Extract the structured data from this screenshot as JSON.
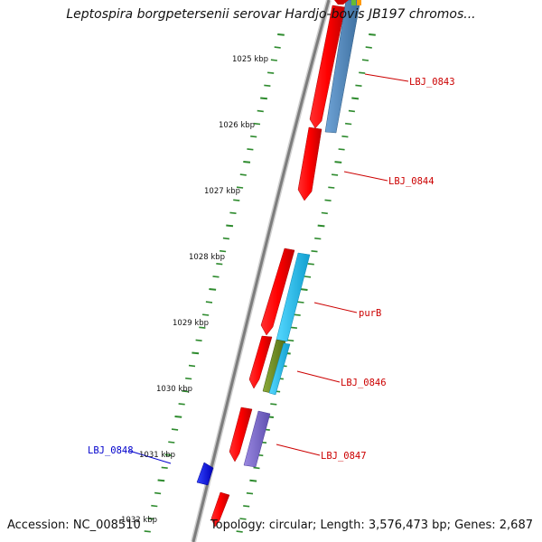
{
  "map": {
    "title": "Leptospira borgpetersenii serovar Hardjo-bovis JB197 chromos...",
    "accession": "Accession: NC_008510",
    "summary": "Topology: circular; Length: 3,576,473 bp; Genes: 2,687"
  },
  "ticks": [
    {
      "label": "1025 kbp"
    },
    {
      "label": "1026 kbp"
    },
    {
      "label": "1027 kbp"
    },
    {
      "label": "1028 kbp"
    },
    {
      "label": "1029 kbp"
    },
    {
      "label": "1030 kbp"
    },
    {
      "label": "1031 kbp"
    },
    {
      "label": "1032 kbp"
    }
  ],
  "gene_labels": [
    {
      "label": "LBJ_0843",
      "color": "#cc0000"
    },
    {
      "label": "LBJ_0844",
      "color": "#cc0000"
    },
    {
      "label": "purB",
      "color": "#cc0000"
    },
    {
      "label": "LBJ_0846",
      "color": "#cc0000"
    },
    {
      "label": "LBJ_0847",
      "color": "#cc0000"
    },
    {
      "label": "LBJ_0848",
      "color": "#0000cc"
    }
  ],
  "colors": {
    "backbone": "#8a8a8a",
    "tick": "#2e8b2e",
    "forward_gene": "#ee1111",
    "reverse_gene": "#1111dd",
    "cog_steelblue": "#4f86b8",
    "cog_cyan": "#22bbee",
    "cog_olive": "#6b8e23",
    "cog_slate": "#7b68c8"
  }
}
